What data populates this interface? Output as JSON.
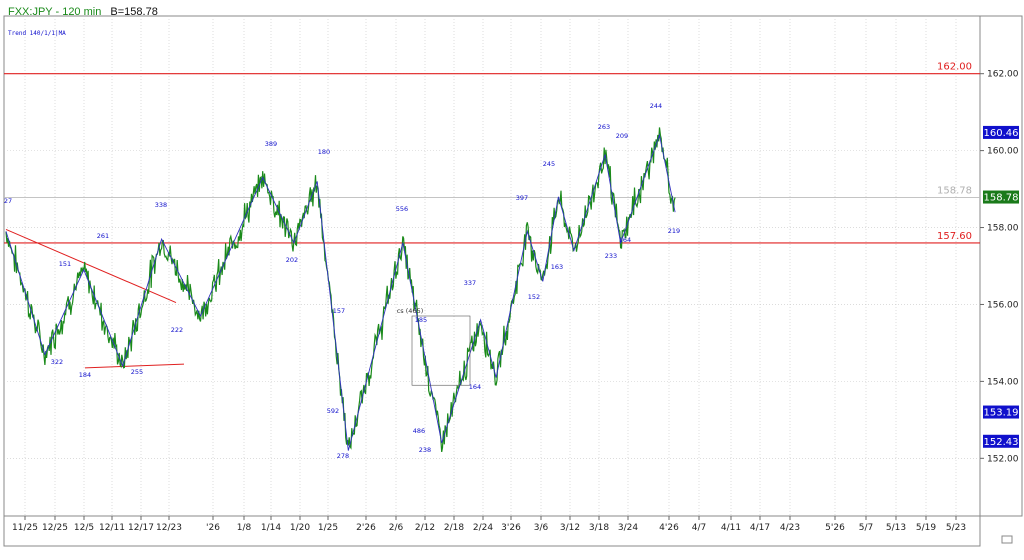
{
  "chart_data": {
    "type": "line",
    "title_symbol": "FXX:JPY - 120 min",
    "title_bid": "B=158.78",
    "subtitle": "Trend 140/1/1|MA",
    "y_ticks": [
      "162.00",
      "160.00",
      "158.00",
      "156.00",
      "154.00",
      "152.00"
    ],
    "y_tick_values": [
      162,
      160,
      158,
      156,
      154,
      152
    ],
    "x_ticks": [
      "11/25",
      "12/25",
      "12/5",
      "12/11",
      "12/17",
      "12/23",
      "'26",
      "1/8",
      "1/14",
      "1/20",
      "1/25",
      "2'26",
      "2/6",
      "2/12",
      "2/18",
      "2/24",
      "3'26",
      "3/6",
      "3/12",
      "3/18",
      "3/24",
      "4'26",
      "4/7",
      "4/11",
      "4/17",
      "4/23",
      "5'26",
      "5/7",
      "5/13",
      "5/19",
      "5/23"
    ],
    "ylim": [
      150.5,
      163.5
    ],
    "price_labels": {
      "hline_162": "162.00",
      "hline_157": "157.60",
      "last_grey": "158.78",
      "last": "158.78",
      "high": "160.46",
      "low1": "153.19",
      "low2": "152.43"
    },
    "horizontal_lines": [
      {
        "value": 162.0,
        "color": "#e02020"
      },
      {
        "value": 157.6,
        "color": "#e02020"
      },
      {
        "value": 158.78,
        "color": "#bbbbbb"
      }
    ],
    "swing_labels": [
      "27",
      "151",
      "261",
      "322",
      "184",
      "255",
      "338",
      "222",
      "389",
      "202",
      "180",
      "157",
      "592",
      "278",
      "556",
      "cs (465)",
      "185",
      "486",
      "238",
      "337",
      "164",
      "397",
      "152",
      "245",
      "163",
      "263",
      "233",
      "164",
      "209",
      "244",
      "219"
    ],
    "zigzag": [
      [
        0,
        157.9
      ],
      [
        5,
        154.7
      ],
      [
        10,
        156.9
      ],
      [
        15,
        154.4
      ],
      [
        20,
        157.7
      ],
      [
        25,
        155.7
      ],
      [
        33,
        159.3
      ],
      [
        37,
        157.6
      ],
      [
        40,
        159.2
      ],
      [
        41,
        157.4
      ],
      [
        44,
        152.2
      ],
      [
        51,
        157.6
      ],
      [
        56,
        152.4
      ],
      [
        61,
        155.6
      ],
      [
        63,
        154.1
      ],
      [
        67,
        157.9
      ],
      [
        69,
        156.6
      ],
      [
        71,
        158.8
      ],
      [
        73,
        157.4
      ],
      [
        77,
        159.9
      ],
      [
        79,
        157.6
      ],
      [
        84,
        160.4
      ],
      [
        86,
        158.4
      ]
    ],
    "colors": {
      "price": "#1a8a1a",
      "zigzag": "#3030c0",
      "hline": "#e02020",
      "label": "#1010cc",
      "last_tag": "#1a7a1a",
      "level_tag": "#1010cc"
    }
  }
}
